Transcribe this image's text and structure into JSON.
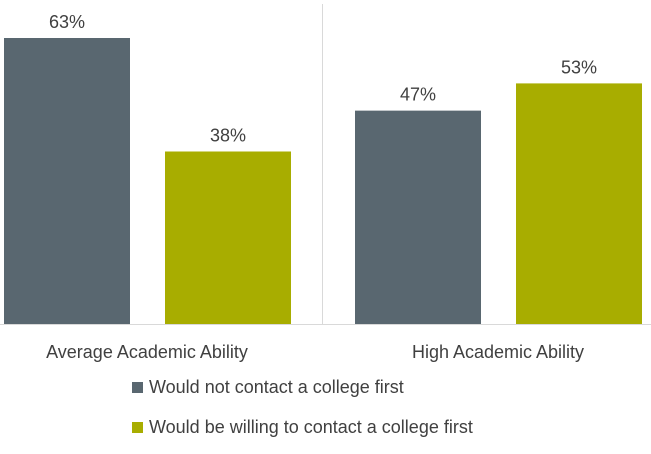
{
  "chart_data": {
    "type": "bar",
    "categories": [
      "Average Academic Ability",
      "High Academic Ability"
    ],
    "series": [
      {
        "name": "Would not contact a college first",
        "values": [
          63,
          47
        ],
        "color": "#596770"
      },
      {
        "name": "Would be willing to contact a college first",
        "values": [
          38,
          53
        ],
        "color": "#a8ad00"
      }
    ],
    "value_suffix": "%",
    "title": "",
    "xlabel": "",
    "ylabel": "",
    "ylim": [
      0,
      63
    ],
    "grid": false,
    "legend_position": "bottom"
  }
}
